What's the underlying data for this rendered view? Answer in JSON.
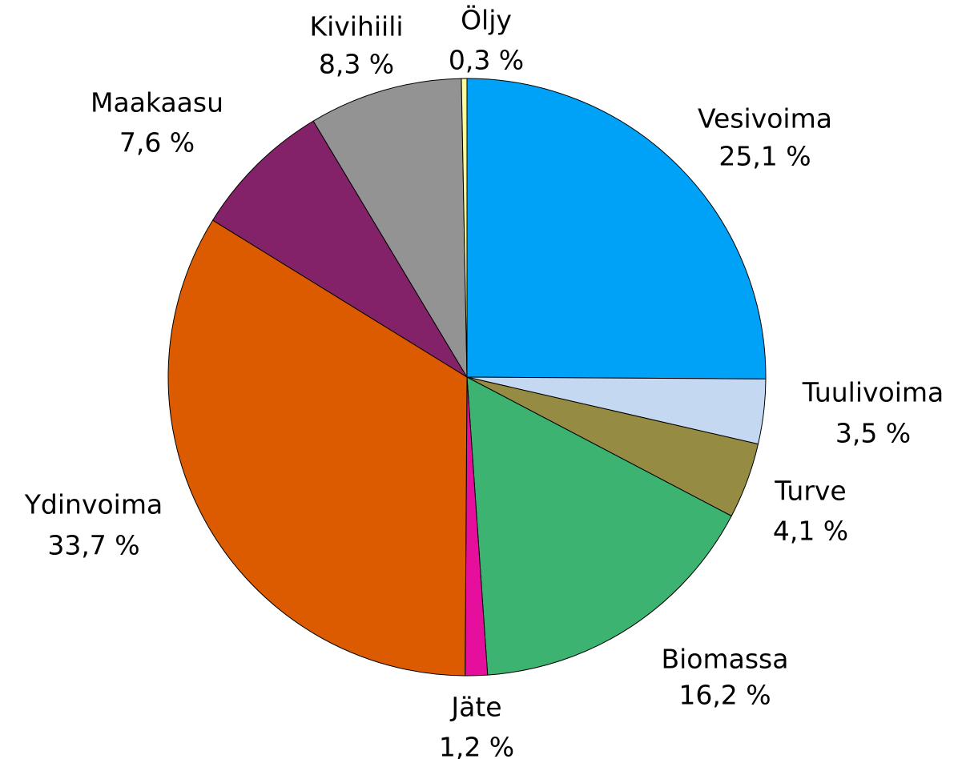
{
  "chart_data": {
    "type": "pie",
    "categories": [
      "Vesivoima",
      "Tuulivoima",
      "Turve",
      "Biomassa",
      "Jäte",
      "Ydinvoima",
      "Maakaasu",
      "Kivihiili",
      "Öljy"
    ],
    "values": [
      25.1,
      3.5,
      4.1,
      16.2,
      1.2,
      33.7,
      7.6,
      8.3,
      0.3
    ],
    "value_labels": [
      "25,1 %",
      "3,5 %",
      "4,1 %",
      "16,2 %",
      "1,2 %",
      "33,7 %",
      "7,6 %",
      "8,3 %",
      "0,3 %"
    ],
    "colors": [
      "#00a2f8",
      "#c5d8f1",
      "#968b42",
      "#3cb371",
      "#e60e9c",
      "#dc5a00",
      "#832169",
      "#939393",
      "#ffff99"
    ]
  }
}
